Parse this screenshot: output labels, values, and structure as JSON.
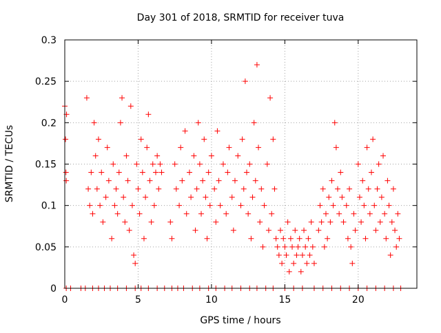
{
  "chart_data": {
    "type": "scatter",
    "title": "Day 301 of 2018, SRMTID for receiver tuva",
    "xlabel": "GPS time / hours",
    "ylabel": "SRMTID / TECUs",
    "xlim": [
      0,
      24
    ],
    "ylim": [
      0,
      0.3
    ],
    "x_ticks": [
      "0",
      "5",
      "10",
      "15",
      "20"
    ],
    "y_ticks": [
      "0",
      "0.05",
      "0.1",
      "0.15",
      "0.2",
      "0.25",
      "0.3"
    ],
    "grid": true,
    "legend": "none",
    "marker": "+",
    "color": "#ff0000",
    "series": [
      {
        "points": [
          [
            0.0,
            0.22
          ],
          [
            0.05,
            0.18
          ],
          [
            0.08,
            0.14
          ],
          [
            0.12,
            0.21
          ],
          [
            0.1,
            0.13
          ],
          [
            1.5,
            0.23
          ],
          [
            1.6,
            0.12
          ],
          [
            1.7,
            0.1
          ],
          [
            1.8,
            0.14
          ],
          [
            1.9,
            0.09
          ],
          [
            2.0,
            0.2
          ],
          [
            2.1,
            0.16
          ],
          [
            2.2,
            0.12
          ],
          [
            2.3,
            0.18
          ],
          [
            2.4,
            0.1
          ],
          [
            2.5,
            0.14
          ],
          [
            2.6,
            0.08
          ],
          [
            2.8,
            0.11
          ],
          [
            2.9,
            0.17
          ],
          [
            3.0,
            0.13
          ],
          [
            3.2,
            0.06
          ],
          [
            3.3,
            0.15
          ],
          [
            3.4,
            0.1
          ],
          [
            3.5,
            0.12
          ],
          [
            3.6,
            0.09
          ],
          [
            3.7,
            0.14
          ],
          [
            3.8,
            0.2
          ],
          [
            3.9,
            0.23
          ],
          [
            4.0,
            0.11
          ],
          [
            4.1,
            0.08
          ],
          [
            4.2,
            0.16
          ],
          [
            4.3,
            0.13
          ],
          [
            4.4,
            0.07
          ],
          [
            4.5,
            0.22
          ],
          [
            4.6,
            0.1
          ],
          [
            4.7,
            0.04
          ],
          [
            4.8,
            0.03
          ],
          [
            4.9,
            0.15
          ],
          [
            5.0,
            0.12
          ],
          [
            5.1,
            0.09
          ],
          [
            5.2,
            0.18
          ],
          [
            5.3,
            0.14
          ],
          [
            5.4,
            0.06
          ],
          [
            5.5,
            0.11
          ],
          [
            5.6,
            0.17
          ],
          [
            5.7,
            0.21
          ],
          [
            5.8,
            0.13
          ],
          [
            5.9,
            0.08
          ],
          [
            6.0,
            0.15
          ],
          [
            6.1,
            0.1
          ],
          [
            6.2,
            0.14
          ],
          [
            6.3,
            0.16
          ],
          [
            6.4,
            0.12
          ],
          [
            6.5,
            0.15
          ],
          [
            6.6,
            0.14
          ],
          [
            7.2,
            0.08
          ],
          [
            7.3,
            0.06
          ],
          [
            7.5,
            0.15
          ],
          [
            7.6,
            0.12
          ],
          [
            7.8,
            0.1
          ],
          [
            7.9,
            0.17
          ],
          [
            8.0,
            0.13
          ],
          [
            8.2,
            0.19
          ],
          [
            8.3,
            0.09
          ],
          [
            8.5,
            0.14
          ],
          [
            8.6,
            0.11
          ],
          [
            8.8,
            0.16
          ],
          [
            8.9,
            0.07
          ],
          [
            9.0,
            0.12
          ],
          [
            9.1,
            0.2
          ],
          [
            9.2,
            0.15
          ],
          [
            9.3,
            0.09
          ],
          [
            9.4,
            0.13
          ],
          [
            9.5,
            0.18
          ],
          [
            9.6,
            0.11
          ],
          [
            9.7,
            0.06
          ],
          [
            9.8,
            0.14
          ],
          [
            9.9,
            0.1
          ],
          [
            10.0,
            0.16
          ],
          [
            10.2,
            0.12
          ],
          [
            10.3,
            0.08
          ],
          [
            10.4,
            0.19
          ],
          [
            10.5,
            0.13
          ],
          [
            10.6,
            0.1
          ],
          [
            10.8,
            0.15
          ],
          [
            11.0,
            0.09
          ],
          [
            11.1,
            0.14
          ],
          [
            11.2,
            0.17
          ],
          [
            11.4,
            0.11
          ],
          [
            11.5,
            0.07
          ],
          [
            11.6,
            0.13
          ],
          [
            11.8,
            0.16
          ],
          [
            12.0,
            0.1
          ],
          [
            12.1,
            0.18
          ],
          [
            12.2,
            0.12
          ],
          [
            12.3,
            0.25
          ],
          [
            12.4,
            0.14
          ],
          [
            12.5,
            0.09
          ],
          [
            12.6,
            0.15
          ],
          [
            12.7,
            0.06
          ],
          [
            12.8,
            0.11
          ],
          [
            12.9,
            0.2
          ],
          [
            13.0,
            0.13
          ],
          [
            13.1,
            0.27
          ],
          [
            13.2,
            0.17
          ],
          [
            13.3,
            0.08
          ],
          [
            13.4,
            0.12
          ],
          [
            13.5,
            0.05
          ],
          [
            13.6,
            0.1
          ],
          [
            13.8,
            0.15
          ],
          [
            13.9,
            0.07
          ],
          [
            14.0,
            0.23
          ],
          [
            14.1,
            0.09
          ],
          [
            14.2,
            0.18
          ],
          [
            14.3,
            0.12
          ],
          [
            14.4,
            0.06
          ],
          [
            14.5,
            0.05
          ],
          [
            14.6,
            0.04
          ],
          [
            14.7,
            0.07
          ],
          [
            14.8,
            0.03
          ],
          [
            14.9,
            0.06
          ],
          [
            15.0,
            0.05
          ],
          [
            15.1,
            0.04
          ],
          [
            15.2,
            0.08
          ],
          [
            15.3,
            0.02
          ],
          [
            15.4,
            0.06
          ],
          [
            15.5,
            0.05
          ],
          [
            15.6,
            0.03
          ],
          [
            15.7,
            0.07
          ],
          [
            15.8,
            0.04
          ],
          [
            15.9,
            0.05
          ],
          [
            16.0,
            0.06
          ],
          [
            16.1,
            0.02
          ],
          [
            16.2,
            0.04
          ],
          [
            16.3,
            0.07
          ],
          [
            16.4,
            0.05
          ],
          [
            16.5,
            0.03
          ],
          [
            16.6,
            0.06
          ],
          [
            16.7,
            0.04
          ],
          [
            16.8,
            0.08
          ],
          [
            16.9,
            0.05
          ],
          [
            17.0,
            0.03
          ],
          [
            17.3,
            0.07
          ],
          [
            17.4,
            0.1
          ],
          [
            17.5,
            0.08
          ],
          [
            17.6,
            0.12
          ],
          [
            17.7,
            0.05
          ],
          [
            17.8,
            0.09
          ],
          [
            17.9,
            0.06
          ],
          [
            18.0,
            0.11
          ],
          [
            18.1,
            0.08
          ],
          [
            18.2,
            0.13
          ],
          [
            18.3,
            0.1
          ],
          [
            18.4,
            0.2
          ],
          [
            18.5,
            0.17
          ],
          [
            18.6,
            0.12
          ],
          [
            18.7,
            0.09
          ],
          [
            18.8,
            0.14
          ],
          [
            18.9,
            0.11
          ],
          [
            19.0,
            0.08
          ],
          [
            19.2,
            0.1
          ],
          [
            19.3,
            0.06
          ],
          [
            19.4,
            0.12
          ],
          [
            19.5,
            0.05
          ],
          [
            19.6,
            0.03
          ],
          [
            19.7,
            0.09
          ],
          [
            19.8,
            0.07
          ],
          [
            20.0,
            0.15
          ],
          [
            20.1,
            0.11
          ],
          [
            20.2,
            0.08
          ],
          [
            20.3,
            0.13
          ],
          [
            20.4,
            0.1
          ],
          [
            20.5,
            0.06
          ],
          [
            20.6,
            0.17
          ],
          [
            20.7,
            0.12
          ],
          [
            20.8,
            0.09
          ],
          [
            20.9,
            0.14
          ],
          [
            21.0,
            0.18
          ],
          [
            21.1,
            0.1
          ],
          [
            21.2,
            0.07
          ],
          [
            21.3,
            0.12
          ],
          [
            21.4,
            0.15
          ],
          [
            21.5,
            0.08
          ],
          [
            21.6,
            0.11
          ],
          [
            21.7,
            0.16
          ],
          [
            21.8,
            0.09
          ],
          [
            21.9,
            0.06
          ],
          [
            22.0,
            0.13
          ],
          [
            22.1,
            0.1
          ],
          [
            22.2,
            0.04
          ],
          [
            22.3,
            0.08
          ],
          [
            22.4,
            0.12
          ],
          [
            22.5,
            0.07
          ],
          [
            22.6,
            0.05
          ],
          [
            22.7,
            0.09
          ],
          [
            22.8,
            0.06
          ],
          [
            0.1,
            0.0
          ],
          [
            0.4,
            0.0
          ],
          [
            1.1,
            0.0
          ],
          [
            1.4,
            0.0
          ],
          [
            1.9,
            0.0
          ],
          [
            2.3,
            0.0
          ],
          [
            2.7,
            0.0
          ],
          [
            3.1,
            0.0
          ],
          [
            3.6,
            0.0
          ],
          [
            4.2,
            0.0
          ],
          [
            4.8,
            0.0
          ],
          [
            5.2,
            0.0
          ],
          [
            5.7,
            0.0
          ],
          [
            6.3,
            0.0
          ],
          [
            6.8,
            0.0
          ],
          [
            7.3,
            0.0
          ],
          [
            7.7,
            0.0
          ],
          [
            8.1,
            0.0
          ],
          [
            8.7,
            0.0
          ],
          [
            9.2,
            0.0
          ],
          [
            9.8,
            0.0
          ],
          [
            10.3,
            0.0
          ],
          [
            10.9,
            0.0
          ],
          [
            11.4,
            0.0
          ],
          [
            12.0,
            0.0
          ],
          [
            12.6,
            0.0
          ],
          [
            13.1,
            0.0
          ],
          [
            13.7,
            0.0
          ],
          [
            14.2,
            0.0
          ],
          [
            15.0,
            0.0
          ],
          [
            15.6,
            0.0
          ],
          [
            16.2,
            0.0
          ],
          [
            17.0,
            0.0
          ],
          [
            17.6,
            0.0
          ],
          [
            18.2,
            0.0
          ],
          [
            18.8,
            0.0
          ],
          [
            19.4,
            0.0
          ],
          [
            20.0,
            0.0
          ],
          [
            20.6,
            0.0
          ],
          [
            21.2,
            0.0
          ],
          [
            21.8,
            0.0
          ],
          [
            22.4,
            0.0
          ],
          [
            22.9,
            0.0
          ]
        ]
      }
    ]
  }
}
